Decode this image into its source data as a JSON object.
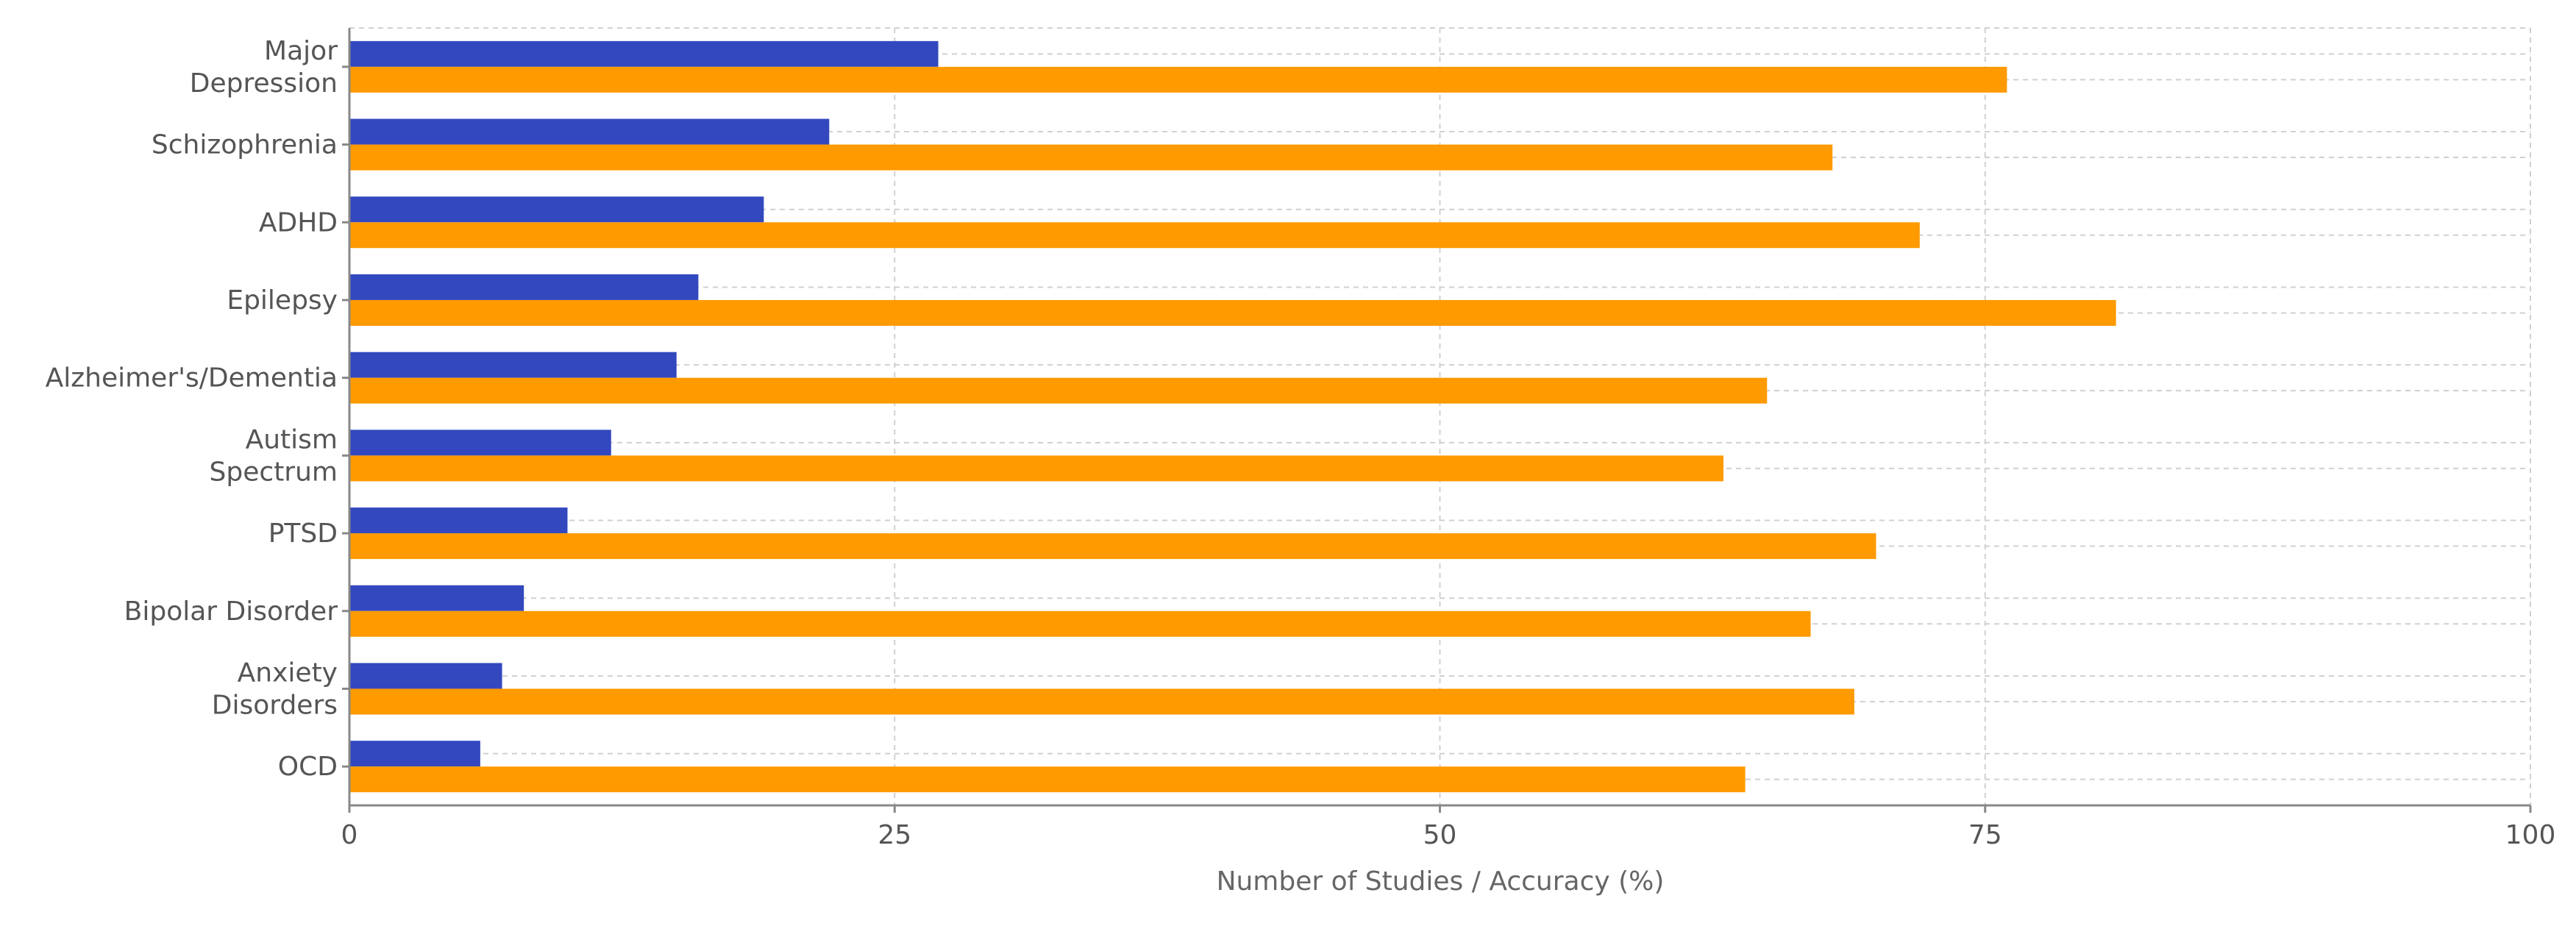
{
  "chart_data": {
    "type": "bar",
    "orientation": "horizontal",
    "title": "",
    "xlabel": "Number of Studies / Accuracy (%)",
    "ylabel": "",
    "xlim": [
      0,
      100
    ],
    "x_ticks": [
      0,
      25,
      50,
      75,
      100
    ],
    "grid": true,
    "legend": "none",
    "categories": [
      "Major Depression",
      "Schizophrenia",
      "ADHD",
      "Epilepsy",
      "Alzheimer's/Dementia",
      "Autism Spectrum",
      "PTSD",
      "Bipolar Disorder",
      "Anxiety Disorders",
      "OCD"
    ],
    "category_label_lines": [
      [
        "Major",
        "Depression"
      ],
      [
        "Schizophrenia"
      ],
      [
        "ADHD"
      ],
      [
        "Epilepsy"
      ],
      [
        "Alzheimer's/Dementia"
      ],
      [
        "Autism",
        "Spectrum"
      ],
      [
        "PTSD"
      ],
      [
        "Bipolar Disorder"
      ],
      [
        "Anxiety",
        "Disorders"
      ],
      [
        "OCD"
      ]
    ],
    "series": [
      {
        "color": "#3348BE",
        "values": [
          27,
          22,
          19,
          16,
          15,
          12,
          10,
          8,
          7,
          6
        ]
      },
      {
        "color": "#FF9A00",
        "values": [
          76,
          68,
          72,
          81,
          65,
          63,
          70,
          67,
          69,
          64
        ]
      }
    ],
    "colors": {
      "grid": "#d0d0d0",
      "axis": "#888888",
      "text": "#555555"
    }
  }
}
